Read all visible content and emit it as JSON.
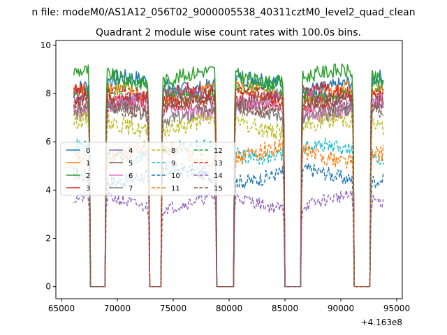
{
  "header": {
    "file_line": "n file: modeM0/AS1A12_056T02_9000005538_40311cztM0_level2_quad_clean"
  },
  "chart_data": {
    "type": "line",
    "title": "Quadrant 2 module wise count rates with 100.0s bins.",
    "xlabel": "",
    "ylabel": "",
    "x_offset_label": "+4.163e8",
    "xlim": [
      64500,
      95500
    ],
    "ylim": [
      -0.5,
      10.2
    ],
    "x_ticks": [
      65000,
      70000,
      75000,
      80000,
      85000,
      90000,
      95000
    ],
    "x_tick_labels": [
      "65000",
      "70000",
      "75000",
      "80000",
      "85000",
      "90000",
      "95000"
    ],
    "y_ticks": [
      0,
      2,
      4,
      6,
      8,
      10
    ],
    "y_tick_labels": [
      "0",
      "2",
      "4",
      "6",
      "8",
      "10"
    ],
    "grid": false,
    "legend_placement": "center-left",
    "legend_columns": 4,
    "bin_seconds": 100,
    "x_start": 66100,
    "x_end": 93850,
    "gaps": [
      [
        67600,
        68900
      ],
      [
        72900,
        73900
      ],
      [
        78900,
        80400
      ],
      [
        85000,
        86400
      ],
      [
        91200,
        92600
      ]
    ],
    "series": [
      {
        "name": "0",
        "color": "#1f77b4",
        "dash": "solid",
        "level": 8.4,
        "jitter": 0.35
      },
      {
        "name": "1",
        "color": "#ff7f0e",
        "dash": "solid",
        "level": 8.0,
        "jitter": 0.35
      },
      {
        "name": "2",
        "color": "#2ca02c",
        "dash": "solid",
        "level": 8.7,
        "jitter": 0.3
      },
      {
        "name": "3",
        "color": "#d62728",
        "dash": "solid",
        "level": 7.9,
        "jitter": 0.35
      },
      {
        "name": "4",
        "color": "#9467bd",
        "dash": "solid",
        "level": 7.8,
        "jitter": 0.3
      },
      {
        "name": "5",
        "color": "#8c564b",
        "dash": "solid",
        "level": 7.6,
        "jitter": 0.3
      },
      {
        "name": "6",
        "color": "#e377c2",
        "dash": "solid",
        "level": 7.4,
        "jitter": 0.35
      },
      {
        "name": "7",
        "color": "#7f7f7f",
        "dash": "solid",
        "level": 7.2,
        "jitter": 0.3
      },
      {
        "name": "8",
        "color": "#bcbd22",
        "dash": "dashed",
        "level": 6.7,
        "jitter": 0.35
      },
      {
        "name": "9",
        "color": "#17becf",
        "dash": "dashed",
        "level": 5.6,
        "jitter": 0.3
      },
      {
        "name": "10",
        "color": "#1f77b4",
        "dash": "dashed",
        "level": 4.6,
        "jitter": 0.3
      },
      {
        "name": "11",
        "color": "#ff7f0e",
        "dash": "dashed",
        "level": 5.5,
        "jitter": 0.35
      },
      {
        "name": "12",
        "color": "#2ca02c",
        "dash": "dashed",
        "level": 8.1,
        "jitter": 0.3
      },
      {
        "name": "13",
        "color": "#d62728",
        "dash": "dashed",
        "level": 7.8,
        "jitter": 0.3
      },
      {
        "name": "14",
        "color": "#9467bd",
        "dash": "dashed",
        "level": 3.5,
        "jitter": 0.25
      },
      {
        "name": "15",
        "color": "#8c564b",
        "dash": "dashed",
        "level": 7.5,
        "jitter": 0.3
      }
    ]
  }
}
